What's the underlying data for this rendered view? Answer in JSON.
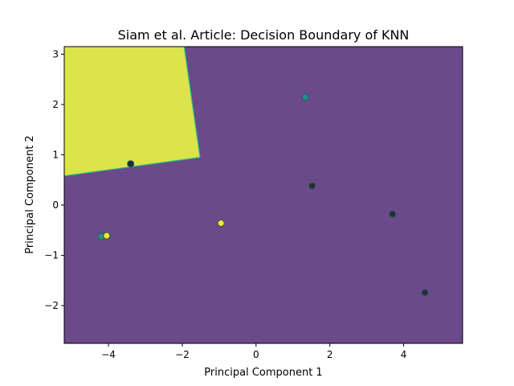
{
  "chart_data": {
    "type": "scatter",
    "title": "Siam et al. Article: Decision Boundary of KNN",
    "xlabel": "Principal Component 1",
    "ylabel": "Principal Component 2",
    "xlim": [
      -5.2,
      5.6
    ],
    "ylim": [
      -2.75,
      3.15
    ],
    "xticks": [
      -4,
      -2,
      0,
      2,
      4
    ],
    "yticks": [
      -2,
      -1,
      0,
      1,
      2,
      3
    ],
    "grid": false,
    "colors": {
      "region_majority": "#6b4a8a",
      "region_minority": "#dbe44b",
      "boundary_line": "#2fbf8a",
      "point_dark": "#2a2a3a",
      "point_teal": "#21918c",
      "point_yellow": "#fde725",
      "point_edge": "#1f5f5a"
    },
    "regions": [
      {
        "class": "minority",
        "polygon": [
          [
            -5.2,
            3.15
          ],
          [
            -1.95,
            3.15
          ],
          [
            -1.52,
            0.95
          ],
          [
            -5.2,
            0.58
          ]
        ]
      }
    ],
    "points": [
      {
        "x": -3.4,
        "y": 0.82,
        "class": "dark"
      },
      {
        "x": 1.34,
        "y": 2.14,
        "class": "teal"
      },
      {
        "x": 1.52,
        "y": 0.38,
        "class": "dark"
      },
      {
        "x": 3.7,
        "y": -0.18,
        "class": "dark"
      },
      {
        "x": 4.58,
        "y": -1.74,
        "class": "dark"
      },
      {
        "x": -0.95,
        "y": -0.36,
        "class": "yellow"
      },
      {
        "x": -4.2,
        "y": -0.63,
        "class": "teal"
      },
      {
        "x": -4.05,
        "y": -0.61,
        "class": "yellow"
      }
    ]
  }
}
